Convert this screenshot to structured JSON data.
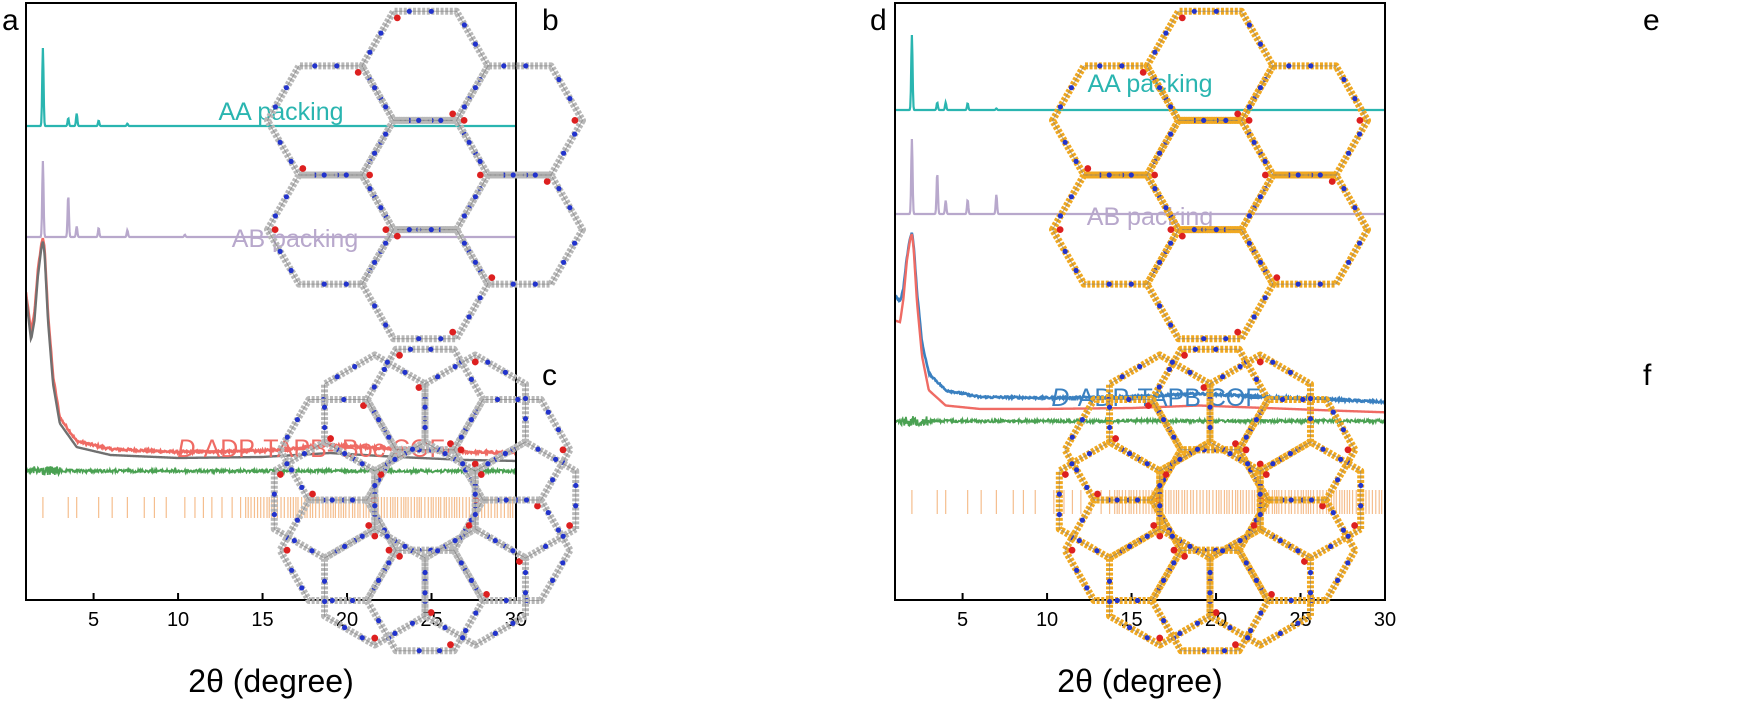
{
  "figure": {
    "panel_labels": [
      "a",
      "b",
      "c",
      "d",
      "e",
      "f"
    ]
  },
  "chart_data": [
    {
      "panel": "a",
      "type": "line",
      "xlabel": "2θ (degree)",
      "ylabel": "",
      "xlim": [
        1,
        30
      ],
      "xticks": [
        5,
        10,
        15,
        20,
        25,
        30
      ],
      "yticks": false,
      "grid": false,
      "legend": "none",
      "series": [
        {
          "name": "AA packing",
          "color": "#2ab5b0",
          "kind": "simulated",
          "peaks": [
            [
              2.0,
              1.0
            ],
            [
              3.5,
              0.1
            ],
            [
              4.0,
              0.16
            ],
            [
              5.3,
              0.07
            ],
            [
              7.0,
              0.03
            ]
          ]
        },
        {
          "name": "AB packing",
          "color": "#b8a8cc",
          "kind": "simulated",
          "peaks": [
            [
              2.0,
              1.0
            ],
            [
              3.5,
              0.55
            ],
            [
              4.0,
              0.14
            ],
            [
              5.3,
              0.12
            ],
            [
              7.0,
              0.09
            ],
            [
              10.4,
              0.03
            ]
          ]
        },
        {
          "name": "D-ADP-TAPB- Boc COF",
          "label_italic_prefix": "D",
          "label_rest": "-ADP-TAPB- Boc COF",
          "color": "#ef6b64",
          "kind": "experimental",
          "x": [
            1.0,
            1.3,
            1.5,
            1.7,
            1.9,
            2.0,
            2.1,
            2.3,
            2.6,
            3.0,
            4.0,
            6.0,
            10,
            15,
            19,
            23,
            27,
            30
          ],
          "y": [
            0.82,
            0.62,
            0.72,
            0.93,
            1.06,
            1.1,
            1.04,
            0.72,
            0.4,
            0.19,
            0.07,
            0.03,
            0.015,
            0.02,
            0.05,
            0.03,
            0.015,
            0.01
          ]
        },
        {
          "name": "Pawley refined",
          "color": "#707070",
          "kind": "refined",
          "x": [
            1.0,
            1.3,
            1.5,
            1.7,
            1.9,
            2.0,
            2.1,
            2.3,
            2.6,
            3.0,
            4.0,
            6.0,
            10,
            15,
            19,
            23,
            27,
            30
          ],
          "y": [
            0.8,
            0.58,
            0.68,
            0.9,
            1.04,
            1.08,
            1.02,
            0.68,
            0.36,
            0.16,
            0.04,
            0.0,
            -0.015,
            -0.01,
            0.01,
            -0.01,
            -0.025,
            -0.03
          ]
        },
        {
          "name": "difference",
          "color": "#4aa152",
          "kind": "difference"
        },
        {
          "name": "Bragg positions",
          "color": "#f5be8e",
          "kind": "ticks",
          "dense_from": 14,
          "dense_to": 30,
          "positions": [
            2.0,
            3.5,
            4.0,
            5.3,
            6.1,
            7.0,
            8.0,
            8.6,
            9.3,
            10.4,
            11.0,
            11.5,
            12.0,
            12.6,
            13.2,
            13.7
          ]
        }
      ]
    },
    {
      "panel": "d",
      "type": "line",
      "xlabel": "2θ (degree)",
      "ylabel": "",
      "xlim": [
        1,
        30
      ],
      "xticks": [
        5,
        10,
        15,
        20,
        25,
        30
      ],
      "yticks": false,
      "grid": false,
      "legend": "none",
      "series": [
        {
          "name": "AA packing",
          "color": "#2ab5b0",
          "kind": "simulated",
          "peaks": [
            [
              2.0,
              1.0
            ],
            [
              3.5,
              0.1
            ],
            [
              4.0,
              0.1
            ],
            [
              5.3,
              0.09
            ],
            [
              7.0,
              0.02
            ]
          ]
        },
        {
          "name": "AB packing",
          "color": "#b8a8cc",
          "kind": "simulated",
          "peaks": [
            [
              2.0,
              1.0
            ],
            [
              3.5,
              0.55
            ],
            [
              4.0,
              0.18
            ],
            [
              5.3,
              0.19
            ],
            [
              7.0,
              0.26
            ]
          ]
        },
        {
          "name": "D-ADP-TAPB COF",
          "label_italic_prefix": "D",
          "label_rest": "-ADP-TAPB COF",
          "color": "#3a80c0",
          "kind": "experimental",
          "x": [
            1.0,
            1.3,
            1.5,
            1.7,
            1.9,
            2.0,
            2.1,
            2.3,
            2.6,
            3.0,
            4.0,
            6.0,
            10,
            15,
            19,
            23,
            27,
            30
          ],
          "y": [
            0.7,
            0.66,
            0.74,
            0.92,
            1.04,
            1.07,
            1.0,
            0.72,
            0.42,
            0.24,
            0.14,
            0.1,
            0.095,
            0.1,
            0.12,
            0.1,
            0.085,
            0.07
          ]
        },
        {
          "name": "Pawley refined",
          "color": "#ef6b64",
          "kind": "refined",
          "x": [
            1.0,
            1.3,
            1.5,
            1.7,
            1.9,
            2.0,
            2.1,
            2.3,
            2.6,
            3.0,
            4.0,
            6.0,
            10,
            15,
            19,
            23,
            27,
            30
          ],
          "y": [
            0.55,
            0.54,
            0.68,
            0.9,
            1.03,
            1.06,
            0.98,
            0.66,
            0.34,
            0.14,
            0.05,
            0.03,
            0.03,
            0.035,
            0.05,
            0.035,
            0.02,
            0.01
          ]
        },
        {
          "name": "difference",
          "color": "#4aa152",
          "kind": "difference"
        },
        {
          "name": "Bragg positions",
          "color": "#f5be8e",
          "kind": "ticks",
          "dense_from": 14,
          "dense_to": 30,
          "positions": [
            2.0,
            3.5,
            4.0,
            5.3,
            6.1,
            7.0,
            8.0,
            8.6,
            9.3,
            10.4,
            11.0,
            11.5,
            12.0,
            12.6,
            13.2,
            13.7
          ]
        }
      ]
    }
  ],
  "structures": [
    {
      "panel": "b",
      "framework_color": "#b8b8b8",
      "layers": "single",
      "center": [
        425,
        175
      ]
    },
    {
      "panel": "c",
      "framework_color": "#b8b8b8",
      "layers": "double",
      "center": [
        425,
        500
      ]
    },
    {
      "panel": "e",
      "framework_color": "#f0a820",
      "layers": "single",
      "center": [
        1210,
        175
      ]
    },
    {
      "panel": "f",
      "framework_color": "#f0a820",
      "layers": "double",
      "center": [
        1210,
        500
      ]
    }
  ]
}
